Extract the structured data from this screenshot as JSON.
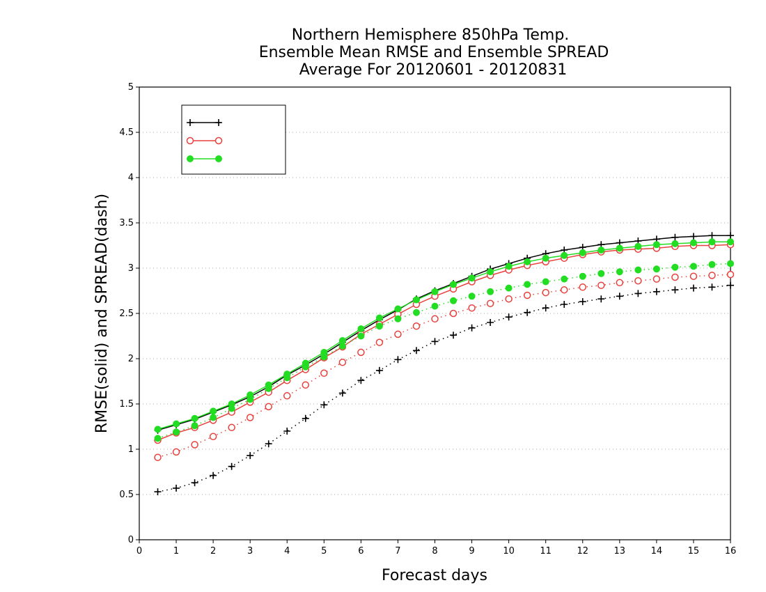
{
  "chart_data": {
    "type": "line",
    "title": "Northern Hemisphere 850hPa Temp.",
    "subtitle": "Ensemble Mean RMSE and Ensemble SPREAD",
    "subtitle2": "Average For 20120601 - 20120831",
    "xlabel": "Forecast days",
    "ylabel": "RMSE(solid) and SPREAD(dash)",
    "xlim": [
      0,
      16
    ],
    "ylim": [
      0,
      5
    ],
    "x_ticks": [
      "0",
      "1",
      "2",
      "3",
      "4",
      "5",
      "6",
      "7",
      "8",
      "9",
      "10",
      "11",
      "12",
      "13",
      "14",
      "15",
      "16"
    ],
    "y_ticks": [
      "0",
      "0.5",
      "1",
      "1.5",
      "2",
      "2.5",
      "3",
      "3.5",
      "4",
      "4.5",
      "5"
    ],
    "grid": "horizontal dotted",
    "legend_placement": "top-left",
    "x": [
      0.5,
      1,
      1.5,
      2,
      2.5,
      3,
      3.5,
      4,
      4.5,
      5,
      5.5,
      6,
      6.5,
      7,
      7.5,
      8,
      8.5,
      9,
      9.5,
      10,
      10.5,
      11,
      11.5,
      12,
      12.5,
      13,
      13.5,
      14,
      14.5,
      15,
      15.5,
      16
    ],
    "series": [
      {
        "name": "",
        "color": "#000000",
        "marker": "plus",
        "rmse": [
          1.21,
          1.27,
          1.33,
          1.41,
          1.49,
          1.58,
          1.69,
          1.82,
          1.93,
          2.05,
          2.18,
          2.31,
          2.43,
          2.54,
          2.66,
          2.75,
          2.83,
          2.91,
          2.99,
          3.05,
          3.11,
          3.16,
          3.2,
          3.23,
          3.26,
          3.28,
          3.3,
          3.32,
          3.34,
          3.35,
          3.36,
          3.36
        ],
        "spread": [
          0.53,
          0.57,
          0.63,
          0.71,
          0.81,
          0.93,
          1.06,
          1.2,
          1.34,
          1.49,
          1.62,
          1.76,
          1.87,
          1.99,
          2.09,
          2.19,
          2.26,
          2.34,
          2.4,
          2.46,
          2.51,
          2.56,
          2.6,
          2.63,
          2.66,
          2.69,
          2.72,
          2.74,
          2.76,
          2.78,
          2.79,
          2.81
        ]
      },
      {
        "name": "",
        "color": "#e8403c",
        "marker": "open-circle",
        "rmse": [
          1.1,
          1.18,
          1.24,
          1.32,
          1.41,
          1.52,
          1.63,
          1.76,
          1.88,
          2.01,
          2.13,
          2.27,
          2.38,
          2.49,
          2.6,
          2.69,
          2.77,
          2.85,
          2.92,
          2.98,
          3.03,
          3.07,
          3.11,
          3.15,
          3.18,
          3.2,
          3.21,
          3.22,
          3.24,
          3.25,
          3.25,
          3.26
        ],
        "spread": [
          0.91,
          0.97,
          1.05,
          1.14,
          1.24,
          1.35,
          1.47,
          1.59,
          1.71,
          1.84,
          1.96,
          2.07,
          2.18,
          2.27,
          2.36,
          2.44,
          2.5,
          2.56,
          2.61,
          2.66,
          2.7,
          2.73,
          2.76,
          2.79,
          2.81,
          2.84,
          2.86,
          2.88,
          2.9,
          2.91,
          2.92,
          2.93
        ]
      },
      {
        "name": "",
        "color": "#22dd22",
        "marker": "filled-circle",
        "rmse": [
          1.22,
          1.28,
          1.34,
          1.42,
          1.5,
          1.6,
          1.71,
          1.83,
          1.95,
          2.07,
          2.2,
          2.33,
          2.45,
          2.55,
          2.65,
          2.74,
          2.82,
          2.89,
          2.96,
          3.02,
          3.07,
          3.11,
          3.14,
          3.17,
          3.2,
          3.22,
          3.24,
          3.26,
          3.27,
          3.28,
          3.29,
          3.29
        ],
        "spread": [
          1.12,
          1.19,
          1.26,
          1.35,
          1.45,
          1.55,
          1.67,
          1.79,
          1.91,
          2.02,
          2.14,
          2.25,
          2.36,
          2.44,
          2.51,
          2.58,
          2.64,
          2.69,
          2.74,
          2.78,
          2.82,
          2.85,
          2.88,
          2.91,
          2.94,
          2.96,
          2.98,
          2.99,
          3.01,
          3.02,
          3.04,
          3.05
        ]
      }
    ]
  }
}
